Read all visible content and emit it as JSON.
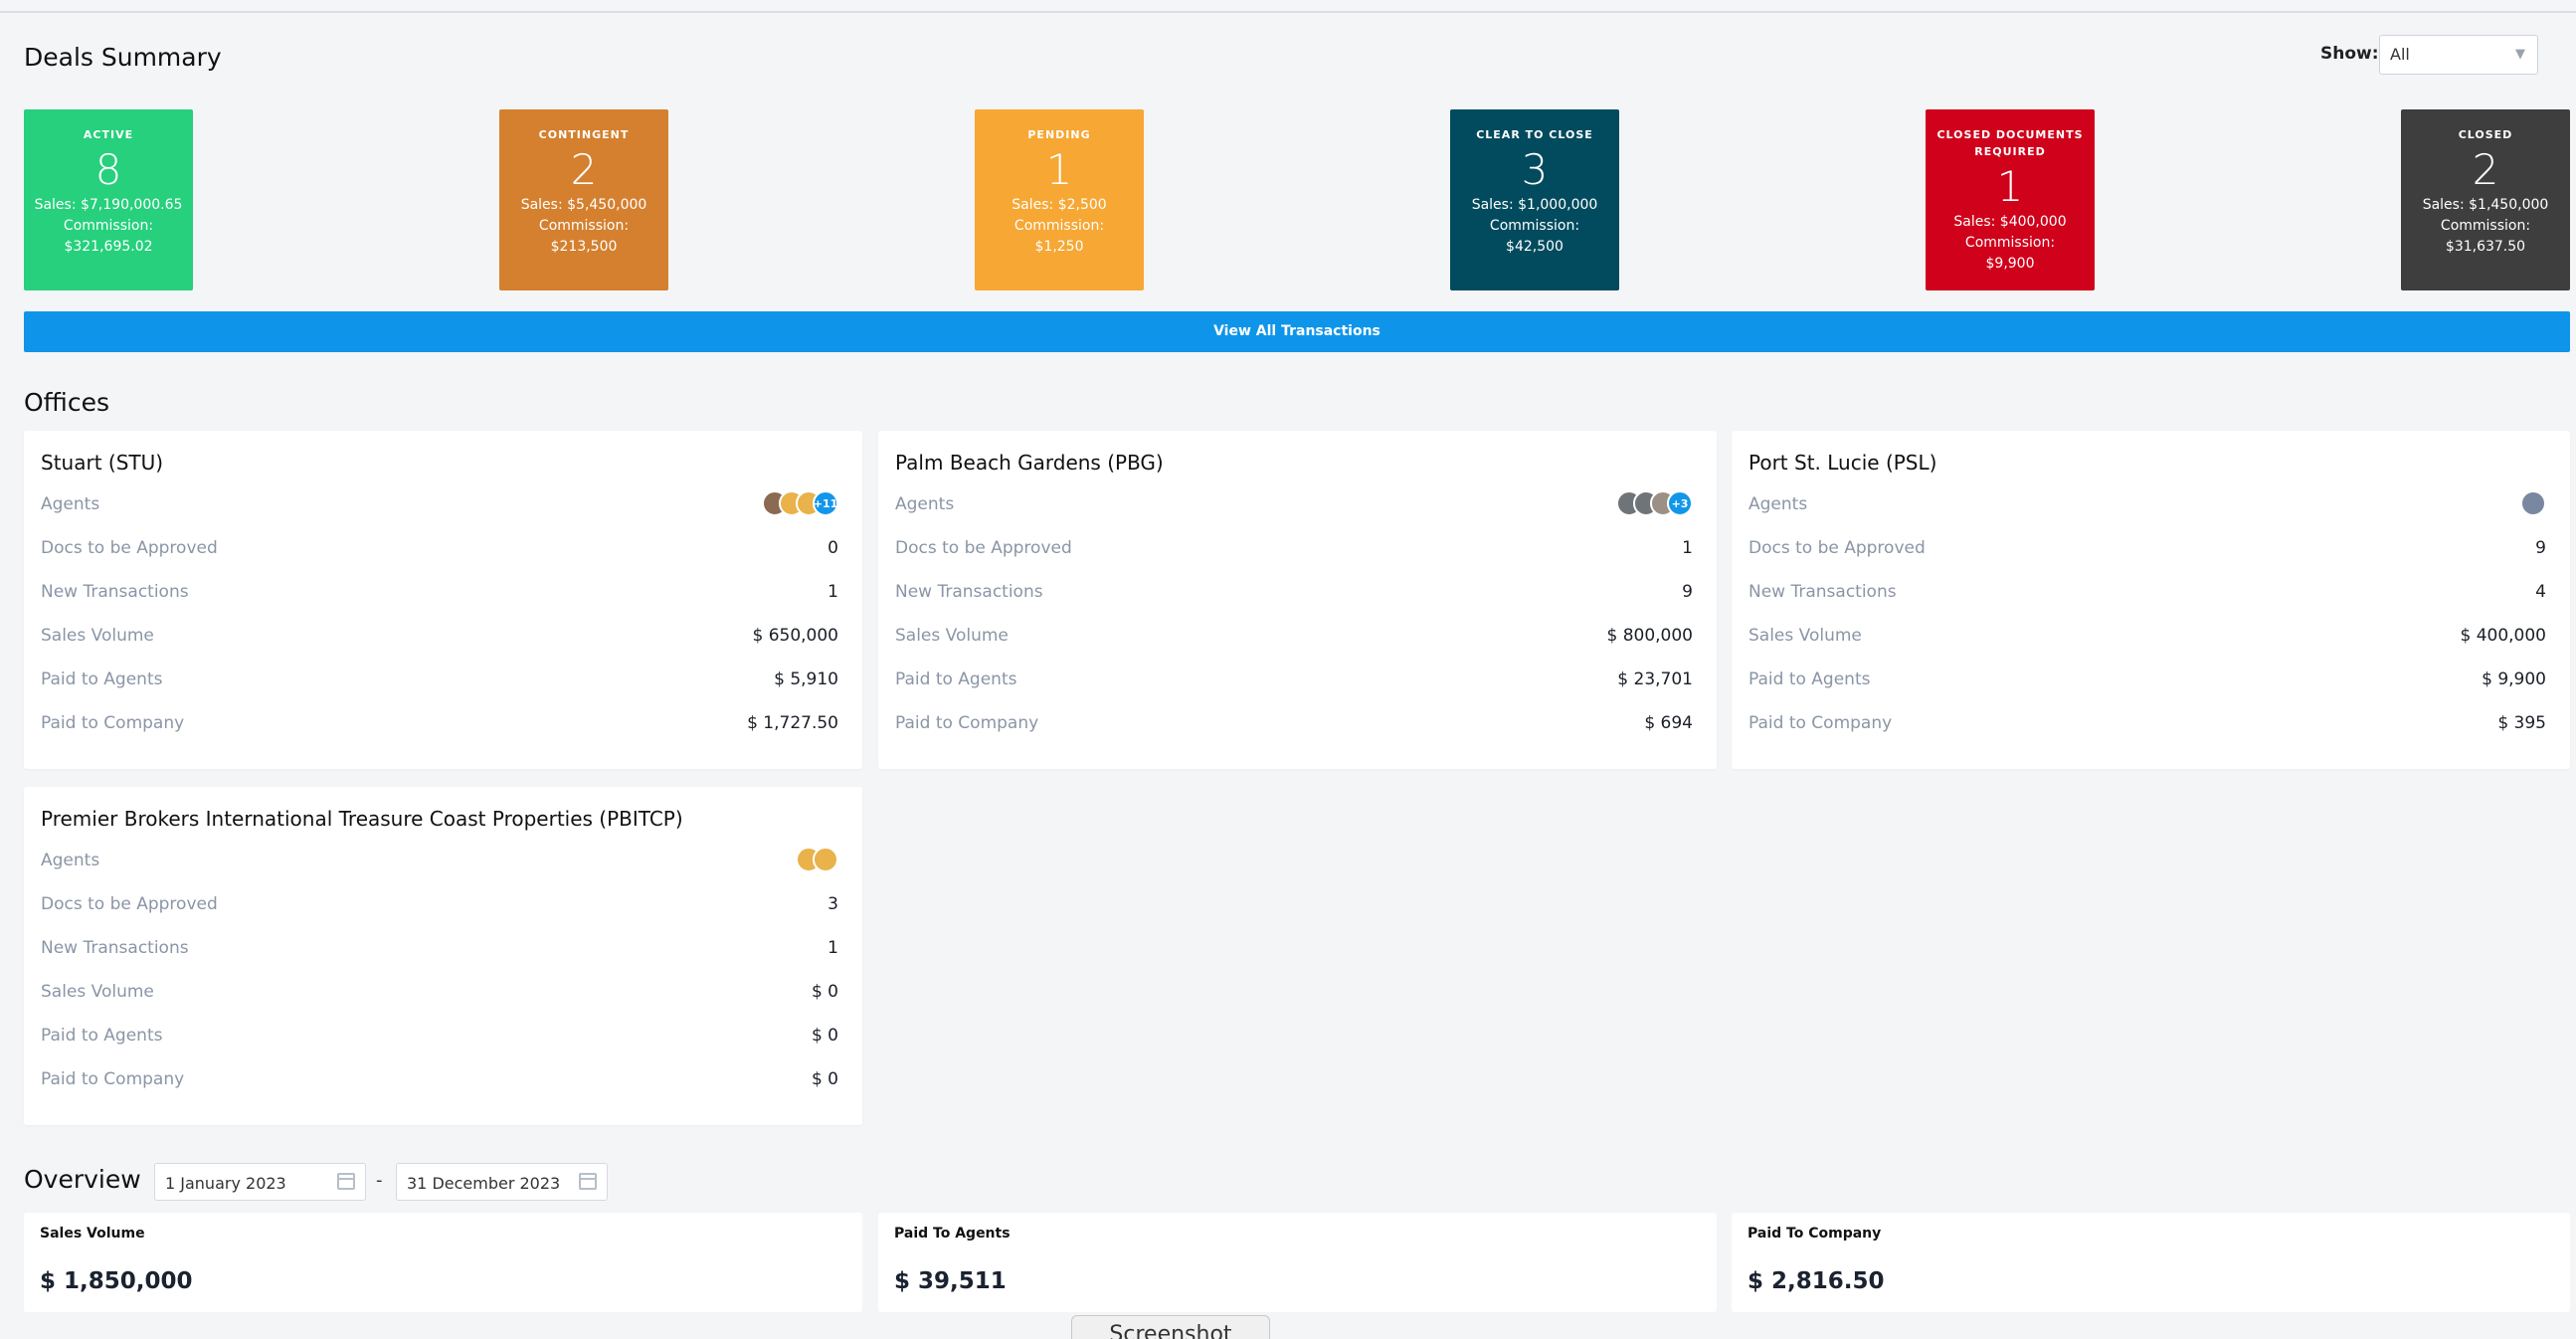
{
  "deals_summary": {
    "title": "Deals Summary",
    "show_label": "Show:",
    "show_value": "All",
    "cards": [
      {
        "label": "ACTIVE",
        "count": "8",
        "sales": "Sales: $7,190,000.65",
        "commission_label": "Commission:",
        "commission": "$321,695.02",
        "color": "#26d07c"
      },
      {
        "label": "CONTINGENT",
        "count": "2",
        "sales": "Sales: $5,450,000",
        "commission_label": "Commission:",
        "commission": "$213,500",
        "color": "#d4802f"
      },
      {
        "label": "PENDING",
        "count": "1",
        "sales": "Sales: $2,500",
        "commission_label": "Commission:",
        "commission": "$1,250",
        "color": "#f6a734"
      },
      {
        "label": "CLEAR TO CLOSE",
        "count": "3",
        "sales": "Sales: $1,000,000",
        "commission_label": "Commission:",
        "commission": "$42,500",
        "color": "#024b5e"
      },
      {
        "label": "CLOSED DOCUMENTS REQUIRED",
        "count": "1",
        "sales": "Sales: $400,000",
        "commission_label": "Commission:",
        "commission": "$9,900",
        "color": "#d0021b"
      },
      {
        "label": "CLOSED",
        "count": "2",
        "sales": "Sales: $1,450,000",
        "commission_label": "Commission:",
        "commission": "$31,637.50",
        "color": "#3e3e3e"
      }
    ],
    "view_all_label": "View All Transactions"
  },
  "offices": {
    "title": "Offices",
    "row_labels": {
      "agents": "Agents",
      "docs": "Docs to be Approved",
      "new_tx": "New Transactions",
      "sales": "Sales Volume",
      "paid_agents": "Paid to Agents",
      "paid_company": "Paid to Company"
    },
    "items": [
      {
        "name": "Stuart (STU)",
        "agents_more": "+11",
        "docs": "0",
        "new_tx": "1",
        "sales": "$ 650,000",
        "paid_agents": "$ 5,910",
        "paid_company": "$ 1,727.50"
      },
      {
        "name": "Palm Beach Gardens (PBG)",
        "agents_more": "+3",
        "docs": "1",
        "new_tx": "9",
        "sales": "$ 800,000",
        "paid_agents": "$ 23,701",
        "paid_company": "$ 694"
      },
      {
        "name": "Port St. Lucie (PSL)",
        "docs": "9",
        "new_tx": "4",
        "sales": "$ 400,000",
        "paid_agents": "$ 9,900",
        "paid_company": "$ 395"
      },
      {
        "name": "Premier Brokers International Treasure Coast Properties (PBITCP)",
        "docs": "3",
        "new_tx": "1",
        "sales": "$ 0",
        "paid_agents": "$ 0",
        "paid_company": "$ 0"
      }
    ]
  },
  "overview": {
    "title": "Overview",
    "date_from": "1 January 2023",
    "date_to": "31 December 2023",
    "date_separator": "-",
    "stats": [
      {
        "label": "Sales Volume",
        "value": "$ 1,850,000"
      },
      {
        "label": "Paid To Agents",
        "value": "$ 39,511"
      },
      {
        "label": "Paid To Company",
        "value": "$ 2,816.50"
      }
    ]
  },
  "screenshot_tab": "Screenshot"
}
